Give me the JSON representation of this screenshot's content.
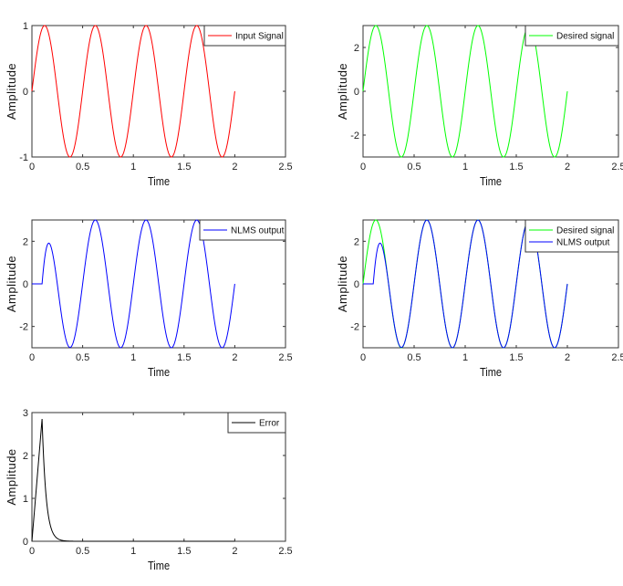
{
  "chart_data": [
    {
      "type": "line",
      "xlabel": "Time",
      "ylabel": "Amplitude",
      "xlim": [
        0,
        2.5
      ],
      "ylim": [
        -1,
        1
      ],
      "xticks": [
        "0",
        "0.5",
        "1",
        "1.5",
        "2",
        "2.5"
      ],
      "yticks": [
        {
          "v": -1,
          "label": "-1"
        },
        {
          "v": 0,
          "label": "0"
        },
        {
          "v": 1,
          "label": "1"
        }
      ],
      "grid": false,
      "legend_position": "top-right",
      "series": [
        {
          "name": "Input Signal",
          "color": "#ff0000",
          "kind": "sine",
          "amplitude": 1,
          "frequency_hz": 2,
          "t_start": 0,
          "t_end": 2,
          "onset": 0
        }
      ]
    },
    {
      "type": "line",
      "xlabel": "Time",
      "ylabel": "Amplitude",
      "xlim": [
        0,
        2.5
      ],
      "ylim": [
        -3,
        3
      ],
      "xticks": [
        "0",
        "0.5",
        "1",
        "1.5",
        "2",
        "2.5"
      ],
      "yticks": [
        {
          "v": -2,
          "label": "-2"
        },
        {
          "v": 0,
          "label": "0"
        },
        {
          "v": 2,
          "label": "2"
        }
      ],
      "grid": false,
      "legend_position": "top-right",
      "series": [
        {
          "name": "Desired signal",
          "color": "#00ff00",
          "kind": "sine",
          "amplitude": 3,
          "frequency_hz": 2,
          "t_start": 0,
          "t_end": 2,
          "onset": 0
        }
      ]
    },
    {
      "type": "line",
      "xlabel": "Time",
      "ylabel": "Amplitude",
      "xlim": [
        0,
        2.5
      ],
      "ylim": [
        -3,
        3
      ],
      "xticks": [
        "0",
        "0.5",
        "1",
        "1.5",
        "2",
        "2.5"
      ],
      "yticks": [
        {
          "v": -2,
          "label": "-2"
        },
        {
          "v": 0,
          "label": "0"
        },
        {
          "v": 2,
          "label": "2"
        }
      ],
      "grid": false,
      "legend_position": "top-right",
      "series": [
        {
          "name": "NLMS output",
          "color": "#0000ff",
          "kind": "sine",
          "amplitude": 3,
          "frequency_hz": 2,
          "t_start": 0,
          "t_end": 2,
          "onset": 0.1,
          "adapt_tau": 0.05
        }
      ]
    },
    {
      "type": "line",
      "xlabel": "Time",
      "ylabel": "Amplitude",
      "xlim": [
        0,
        2.5
      ],
      "ylim": [
        -3,
        3
      ],
      "xticks": [
        "0",
        "0.5",
        "1",
        "1.5",
        "2",
        "2.5"
      ],
      "yticks": [
        {
          "v": -2,
          "label": "-2"
        },
        {
          "v": 0,
          "label": "0"
        },
        {
          "v": 2,
          "label": "2"
        }
      ],
      "grid": false,
      "legend_position": "top-right",
      "series": [
        {
          "name": "Desired signal",
          "color": "#00ff00",
          "kind": "sine",
          "amplitude": 3,
          "frequency_hz": 2,
          "t_start": 0,
          "t_end": 2,
          "onset": 0
        },
        {
          "name": "NLMS output",
          "color": "#0000ff",
          "kind": "sine",
          "amplitude": 3,
          "frequency_hz": 2,
          "t_start": 0,
          "t_end": 2,
          "onset": 0.1,
          "adapt_tau": 0.05
        }
      ]
    },
    {
      "type": "line",
      "xlabel": "Time",
      "ylabel": "Amplitude",
      "xlim": [
        0,
        2.5
      ],
      "ylim": [
        0,
        3
      ],
      "xticks": [
        "0",
        "0.5",
        "1",
        "1.5",
        "2",
        "2.5"
      ],
      "yticks": [
        {
          "v": 0,
          "label": "0"
        },
        {
          "v": 1,
          "label": "1"
        },
        {
          "v": 2,
          "label": "2"
        },
        {
          "v": 3,
          "label": "3"
        }
      ],
      "grid": false,
      "legend_position": "top-right",
      "series": [
        {
          "name": "Error",
          "color": "#000000",
          "kind": "error",
          "peak_t": 0.1,
          "peak_value": 2.85,
          "decay_tau": 0.04,
          "t_start": 0,
          "t_end": 2
        }
      ]
    }
  ]
}
